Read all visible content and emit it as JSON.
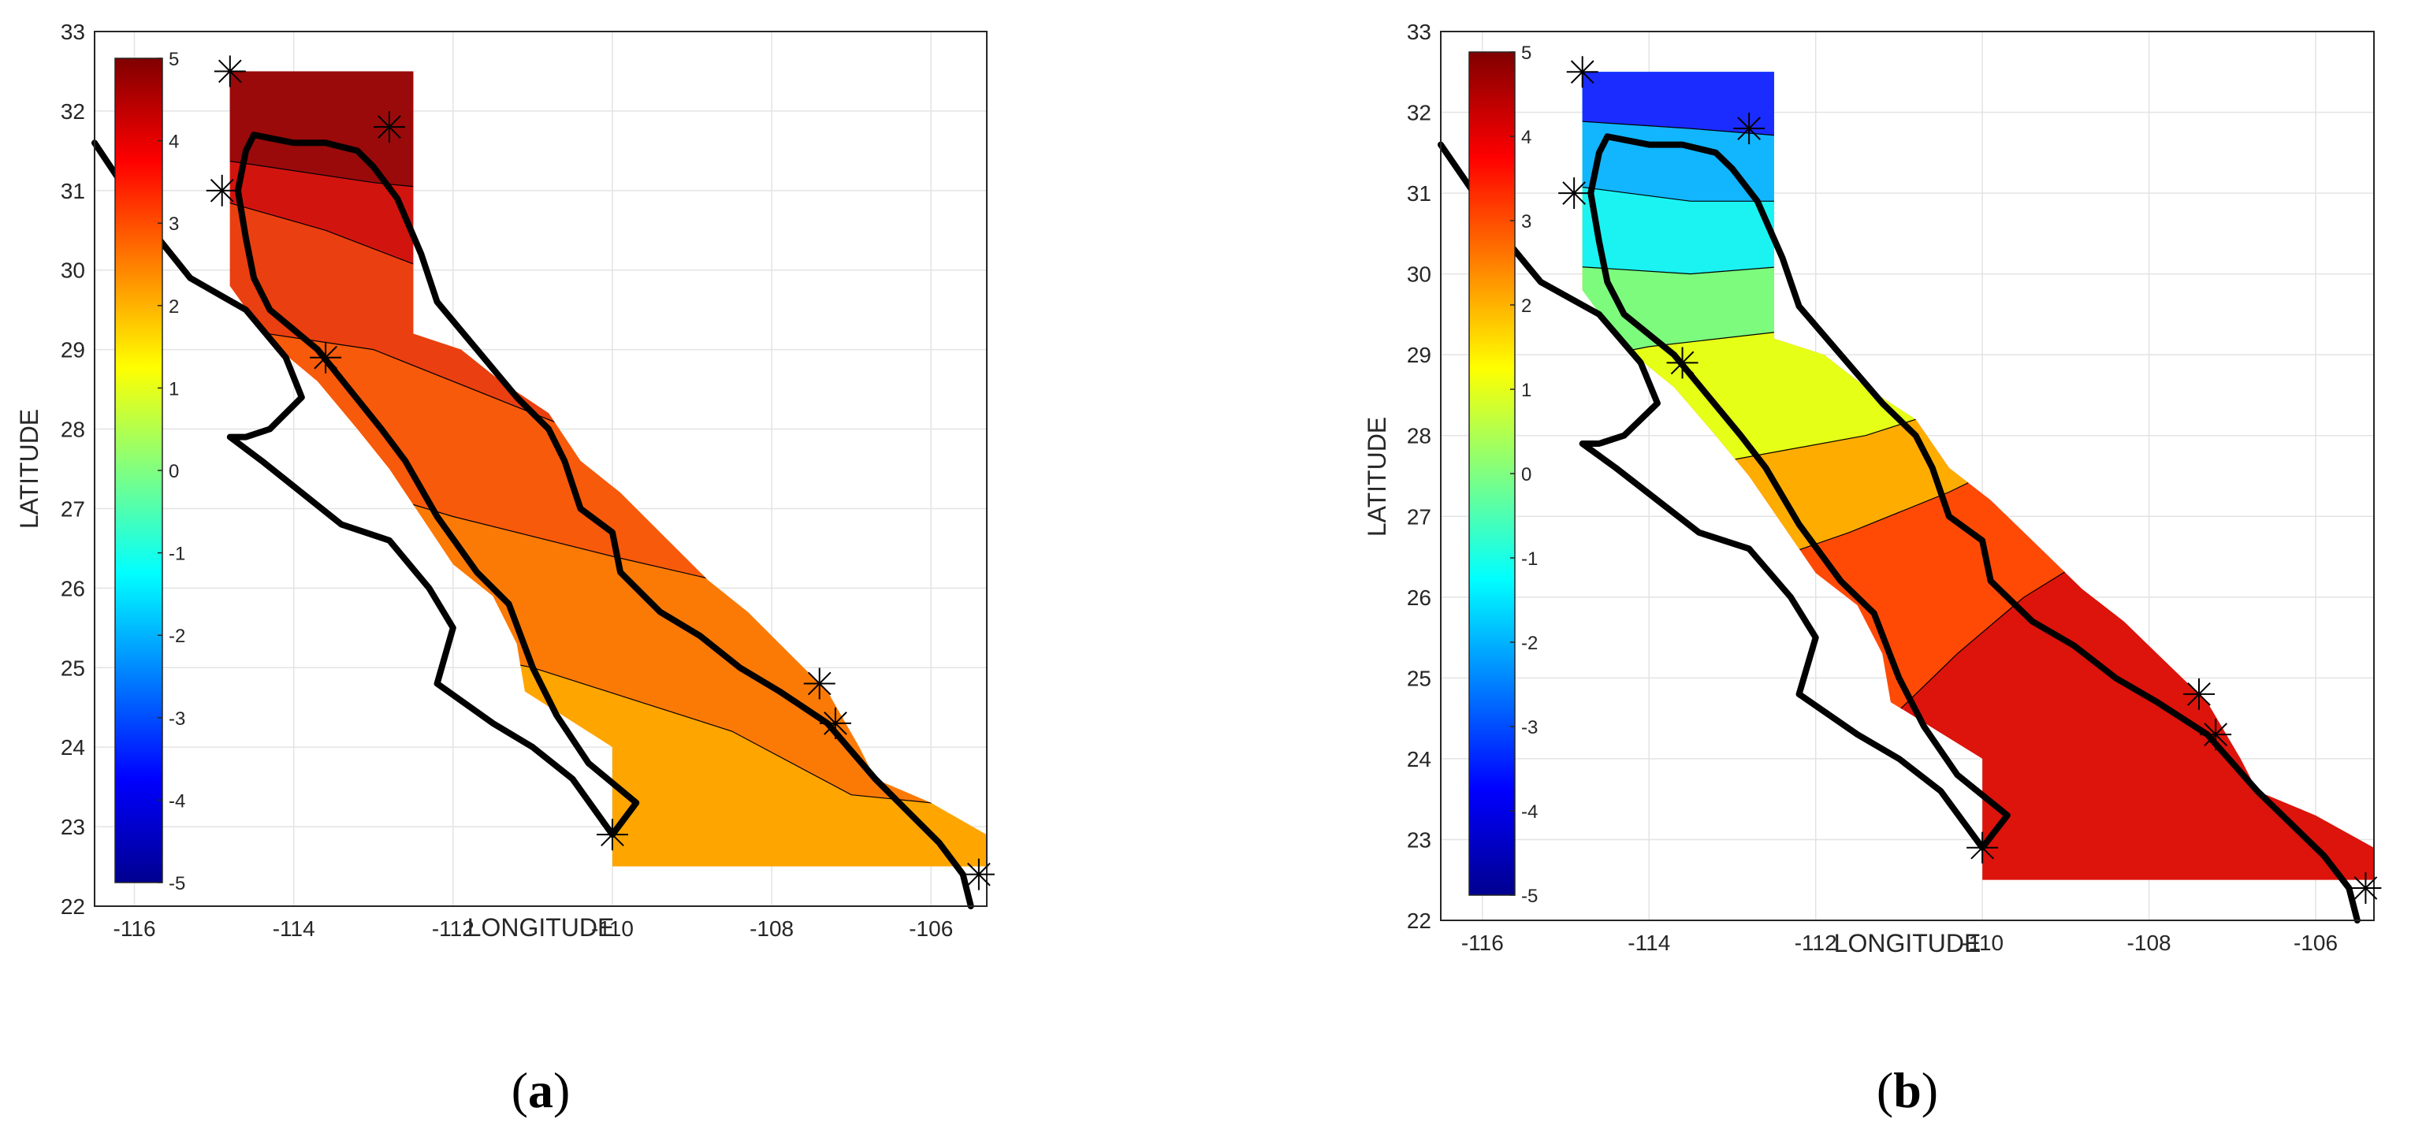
{
  "chart_data": [
    {
      "type": "heatmap",
      "panel_label": {
        "open": "(",
        "letter": "a",
        "close": ")"
      },
      "xlabel": "LONGITUDE",
      "ylabel": "LATITUDE",
      "xlim": [
        -116.5,
        -105.3
      ],
      "ylim": [
        22,
        33
      ],
      "x_ticks": [
        "-116",
        "-114",
        "-112",
        "-110",
        "-108",
        "-106"
      ],
      "y_ticks": [
        "22",
        "23",
        "24",
        "25",
        "26",
        "27",
        "28",
        "29",
        "30",
        "31",
        "32",
        "33"
      ],
      "grid": true,
      "colormap": "jet",
      "colorbar": {
        "ticks": [
          "5",
          "4",
          "3",
          "2",
          "1",
          "0",
          "-1",
          "-2",
          "-3",
          "-4",
          "-5"
        ],
        "range": [
          -5,
          5
        ]
      },
      "contour_levels": [
        {
          "level": 4.6,
          "color": "#9a0a0a"
        },
        {
          "level": 4.0,
          "color": "#d2140f"
        },
        {
          "level": 3.5,
          "color": "#ea3f10"
        },
        {
          "level": 3.2,
          "color": "#f75a0b"
        },
        {
          "level": 2.8,
          "color": "#fb7a06"
        },
        {
          "level": 2.2,
          "color": "#ffa500"
        }
      ],
      "stations": [
        [
          -114.8,
          32.5
        ],
        [
          -112.8,
          31.8
        ],
        [
          -114.9,
          31.0
        ],
        [
          -113.6,
          28.9
        ],
        [
          -110.0,
          22.9
        ],
        [
          -107.4,
          24.8
        ],
        [
          -107.2,
          24.3
        ],
        [
          -105.4,
          22.4
        ]
      ]
    },
    {
      "type": "heatmap",
      "panel_label": {
        "open": "(",
        "letter": "b",
        "close": ")"
      },
      "xlabel": "LONGITUDE",
      "ylabel": "LATITUDE",
      "xlim": [
        -116.5,
        -105.3
      ],
      "ylim": [
        22,
        33
      ],
      "x_ticks": [
        "-116",
        "-114",
        "-112",
        "-110",
        "-108",
        "-106"
      ],
      "y_ticks": [
        "22",
        "23",
        "24",
        "25",
        "26",
        "27",
        "28",
        "29",
        "30",
        "31",
        "32",
        "33"
      ],
      "grid": true,
      "colormap": "jet",
      "colorbar": {
        "ticks": [
          "5",
          "4",
          "3",
          "2",
          "1",
          "0",
          "-1",
          "-2",
          "-3",
          "-4",
          "-5"
        ],
        "range": [
          -5,
          5
        ]
      },
      "contour_levels": [
        {
          "level": -4.0,
          "color": "#1a2cff"
        },
        {
          "level": -3.0,
          "color": "#1372ff"
        },
        {
          "level": -2.0,
          "color": "#11b6ff"
        },
        {
          "level": -1.2,
          "color": "#1bf2f2"
        },
        {
          "level": 0.2,
          "color": "#7cfb7c"
        },
        {
          "level": 1.3,
          "color": "#e6ff17"
        },
        {
          "level": 2.4,
          "color": "#ffac00"
        },
        {
          "level": 3.5,
          "color": "#ff4a06"
        },
        {
          "level": 4.1,
          "color": "#dc140c"
        }
      ],
      "stations": [
        [
          -114.8,
          32.5
        ],
        [
          -112.8,
          31.8
        ],
        [
          -114.9,
          31.0
        ],
        [
          -113.6,
          28.9
        ],
        [
          -110.0,
          22.9
        ],
        [
          -107.4,
          24.8
        ],
        [
          -107.2,
          24.3
        ],
        [
          -105.4,
          22.4
        ]
      ]
    }
  ]
}
